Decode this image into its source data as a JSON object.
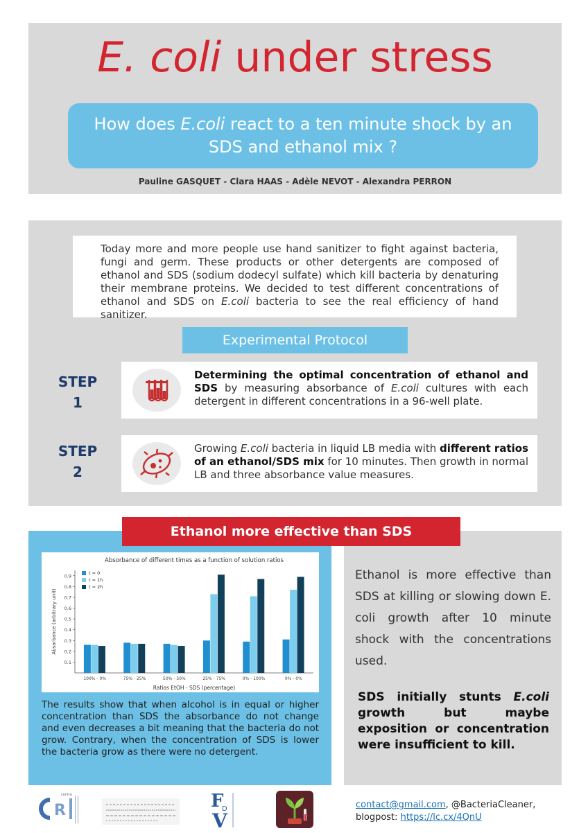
{
  "header": {
    "title_italic": "E. coli",
    "title_rest": " under stress",
    "question_part1": "How does ",
    "question_italic": "E.coli",
    "question_part2": " react to a ten minute shock by an SDS and ethanol mix ?",
    "authors": "Pauline GASQUET - Clara HAAS - Adèle NEVOT - Alexandra PERRON"
  },
  "intro": {
    "text_part1": "Today more and more people use hand sanitizer to fight against bacteria, fungi and germ. These products or other detergents are composed of ethanol and SDS (sodium dodecyl sulfate) which kill bacteria by denaturing their membrane proteins. We decided to test different concentrations of ethanol and SDS on ",
    "text_italic": "E.coli",
    "text_part2": "  bacteria to see the real efficiency of hand sanitizer."
  },
  "protocol": {
    "title": "Experimental Protocol",
    "steps": [
      {
        "label_word": "STEP",
        "label_num": "1",
        "icon": "test-tubes-icon",
        "bold": "Determining the optimal concentration of ethanol and SDS",
        "text_a": " by measuring absorbance of ",
        "italic": "E.coli",
        "text_b": " cultures with each detergent in different concentrations in a 96-well plate."
      },
      {
        "label_word": "STEP",
        "label_num": "2",
        "icon": "bacterium-icon",
        "text_a": "Growing ",
        "italic": "E.coli",
        "text_b": " bacteria in liquid LB media with ",
        "bold": "different ratios of an ethanol/SDS mix",
        "text_c": " for 10 minutes.  Then growth in normal LB and three absorbance value measures."
      }
    ]
  },
  "results": {
    "title": "Ethanol more effective than SDS",
    "left_text": "The results show that when alcohol is in equal or higher concentration than SDS the absorbance do not change and even decreases a bit meaning that the bacteria do not grow. Contrary, when the concentration of SDS is lower the bacteria grow as there were no detergent.",
    "ethanol_text": "Ethanol is more effective than SDS at killing or slowing down E. coli growth after 10 minute shock with the concentrations used.",
    "sds_part1": "SDS initially stunts ",
    "sds_italic": "E.coli",
    "sds_part2": " growth but maybe exposition or concentration were insufficient to kill."
  },
  "chart_data": {
    "type": "bar",
    "title": "Absorbance of different times as a function of solution ratios",
    "xlabel": "Ratios EtOH - SDS (percentage)",
    "ylabel": "Absorbance (arbitrary unit)",
    "ylim": [
      0,
      0.95
    ],
    "yticks": [
      0.1,
      0.2,
      0.3,
      0.4,
      0.5,
      0.6,
      0.7,
      0.8,
      0.9
    ],
    "categories": [
      "100% - 0%",
      "75% - 25%",
      "50% - 50%",
      "25% - 75%",
      "0% - 100%",
      "0% - 0%"
    ],
    "legend_position": "top-left",
    "series": [
      {
        "name": "t = 0",
        "color": "#1f8fcf",
        "values": [
          0.26,
          0.28,
          0.27,
          0.3,
          0.29,
          0.31
        ]
      },
      {
        "name": "t = 1h",
        "color": "#7dcdee",
        "values": [
          0.26,
          0.27,
          0.26,
          0.73,
          0.71,
          0.77
        ]
      },
      {
        "name": "t = 2h",
        "color": "#123f5a",
        "values": [
          0.25,
          0.27,
          0.25,
          0.91,
          0.87,
          0.89
        ]
      }
    ]
  },
  "footer": {
    "email": "contact@gmail.com",
    "handle": ", @BacteriaCleaner,",
    "blog_label": "blogpost: ",
    "blog_link": "https://lc.cx/4QnU"
  },
  "logos": {
    "cri": "CRI",
    "fdv": "FdV"
  }
}
